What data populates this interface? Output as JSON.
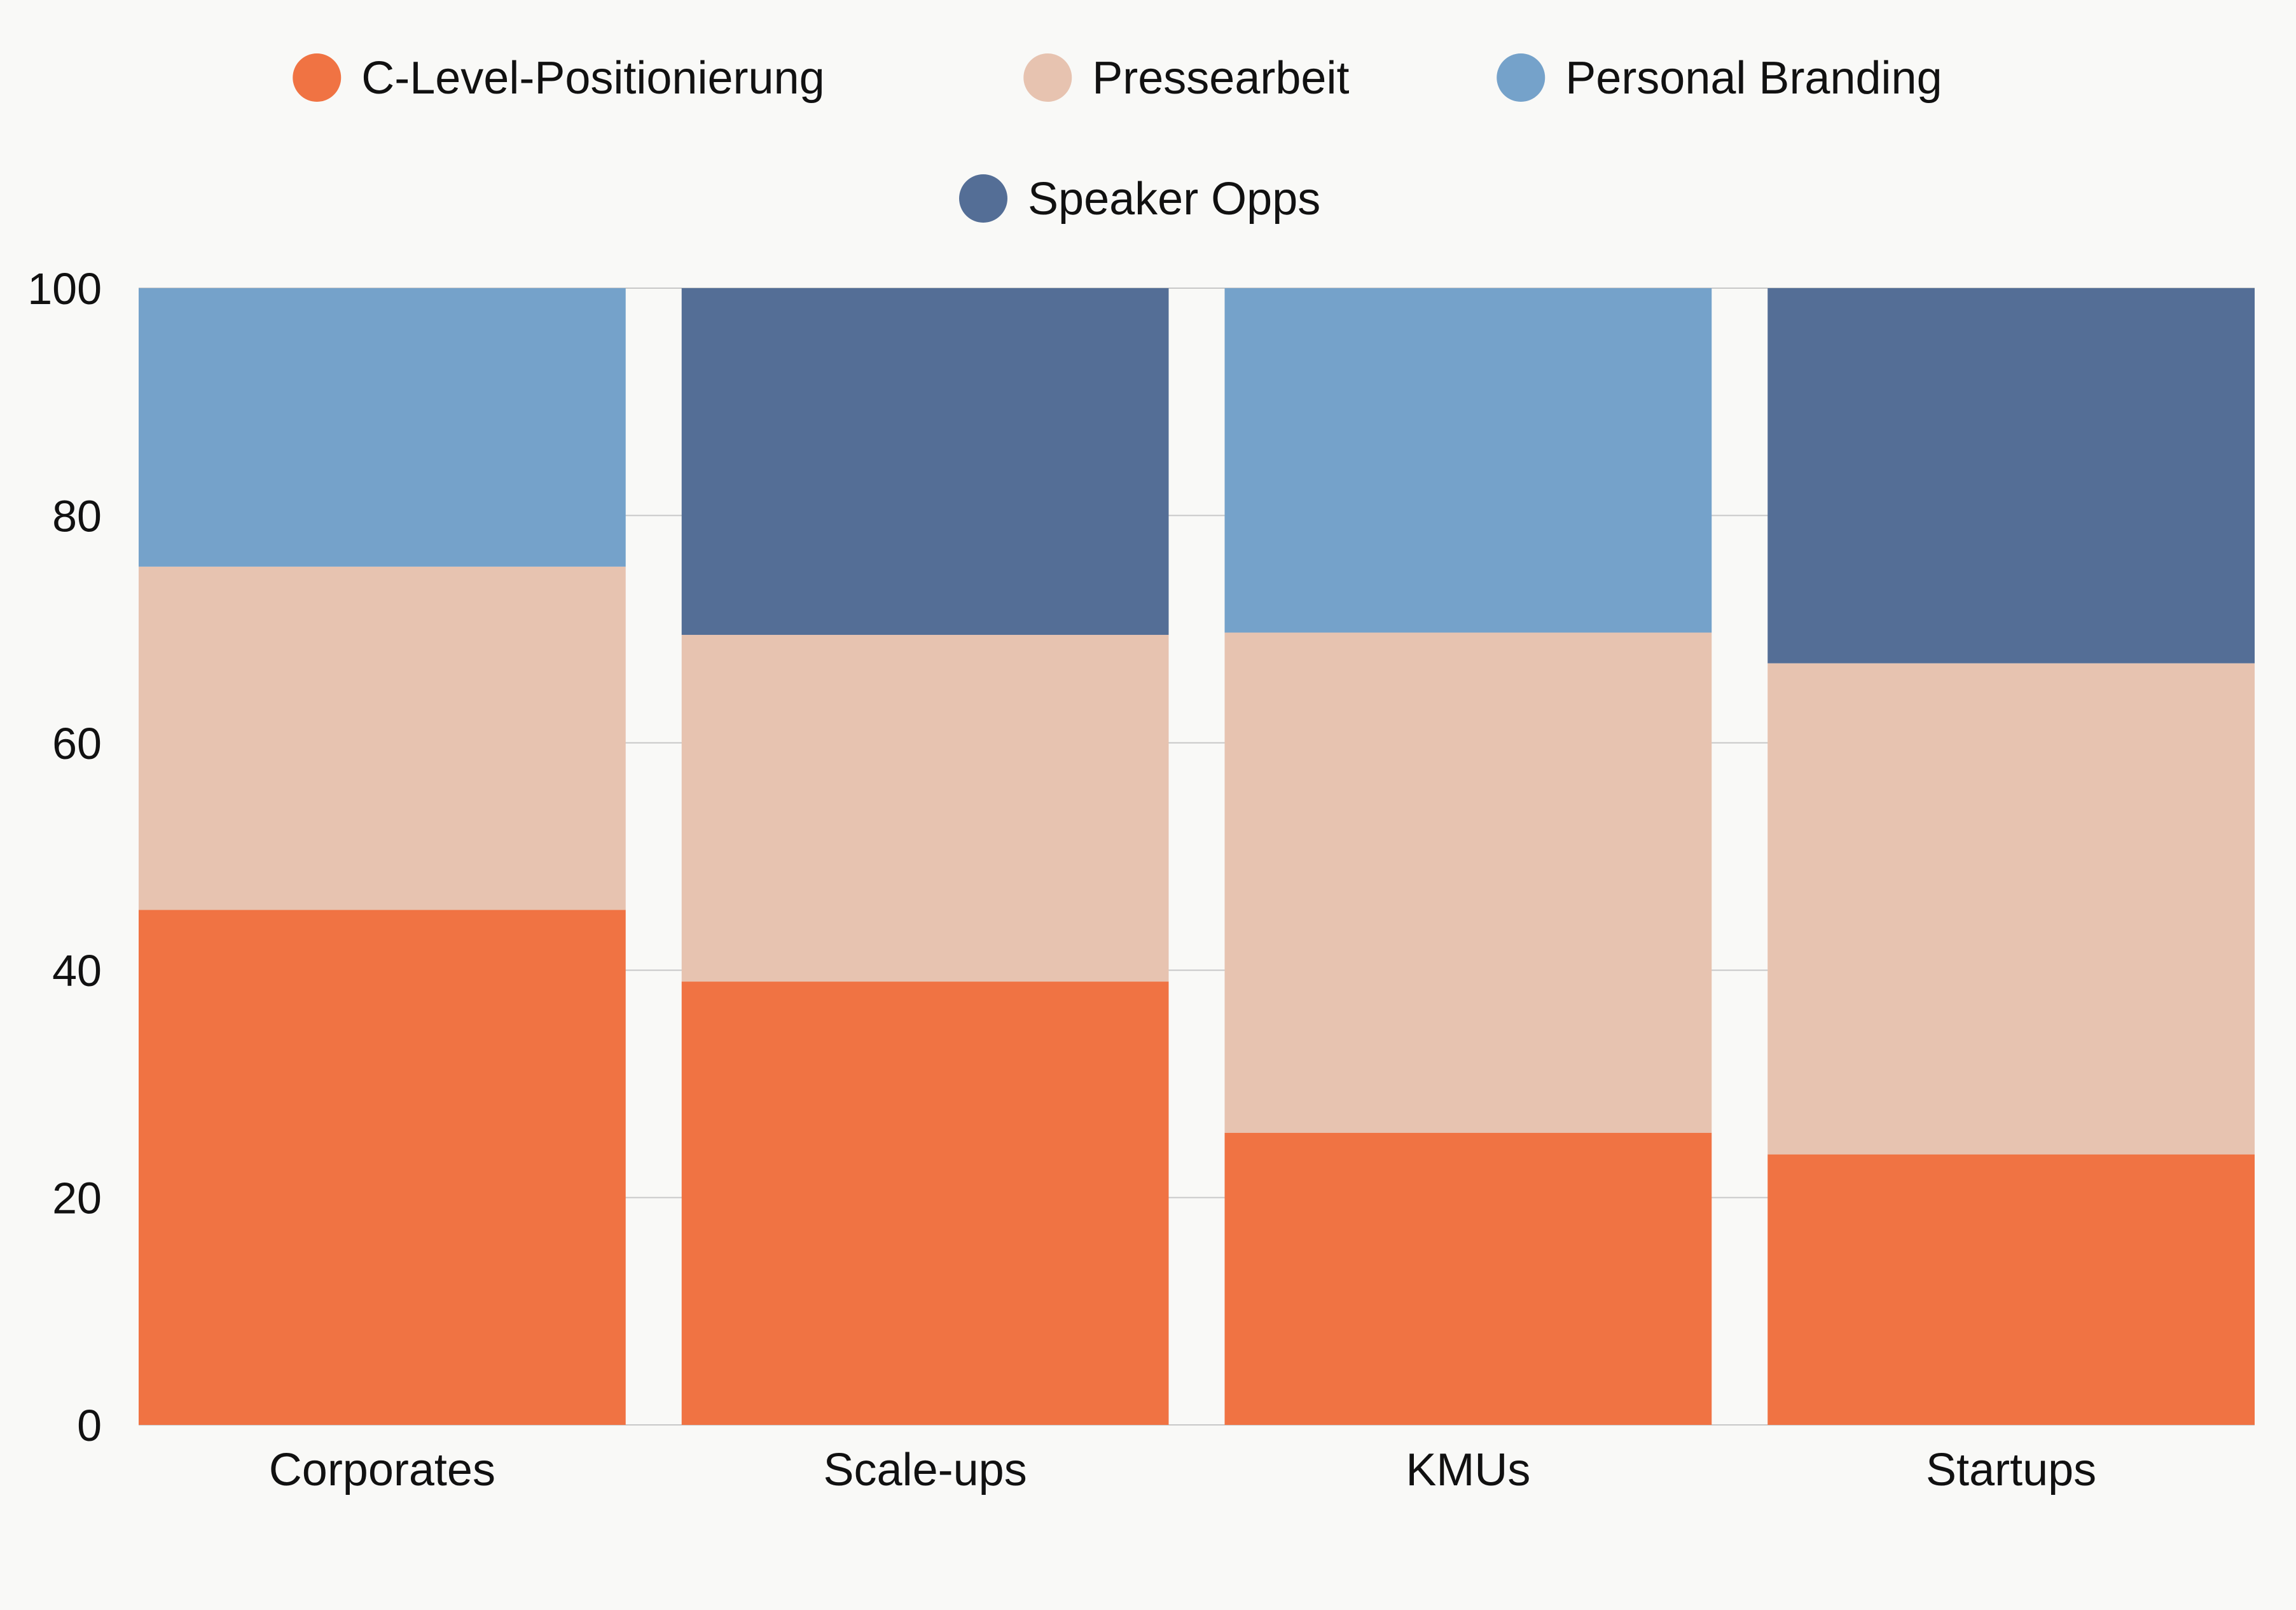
{
  "chart_data": {
    "type": "bar",
    "stacked": true,
    "title": "",
    "xlabel": "",
    "ylabel": "",
    "ylim": [
      0,
      100
    ],
    "yticks": [
      0,
      20,
      40,
      60,
      80,
      100
    ],
    "grid": true,
    "legend_position": "top",
    "categories": [
      "Corporates",
      "Scale-ups",
      "KMUs",
      "Startups"
    ],
    "series": [
      {
        "name": "C-Level-Positionierung",
        "color": "#f07343",
        "values": [
          45.3,
          39,
          25.7,
          23.8
        ]
      },
      {
        "name": "Pressearbeit",
        "color": "#e7c3b0",
        "values": [
          30.2,
          30.5,
          44,
          43.2
        ]
      },
      {
        "name": "Personal Branding",
        "color": "#75a2ca",
        "values": [
          24.5,
          0,
          30.3,
          0
        ]
      },
      {
        "name": "Speaker Opps",
        "color": "#546e96",
        "values": [
          0,
          30.5,
          0,
          33
        ]
      }
    ]
  },
  "colors": {
    "background": "#f9f9f7",
    "gridline": "#c8c8c8",
    "text": "#111111"
  }
}
